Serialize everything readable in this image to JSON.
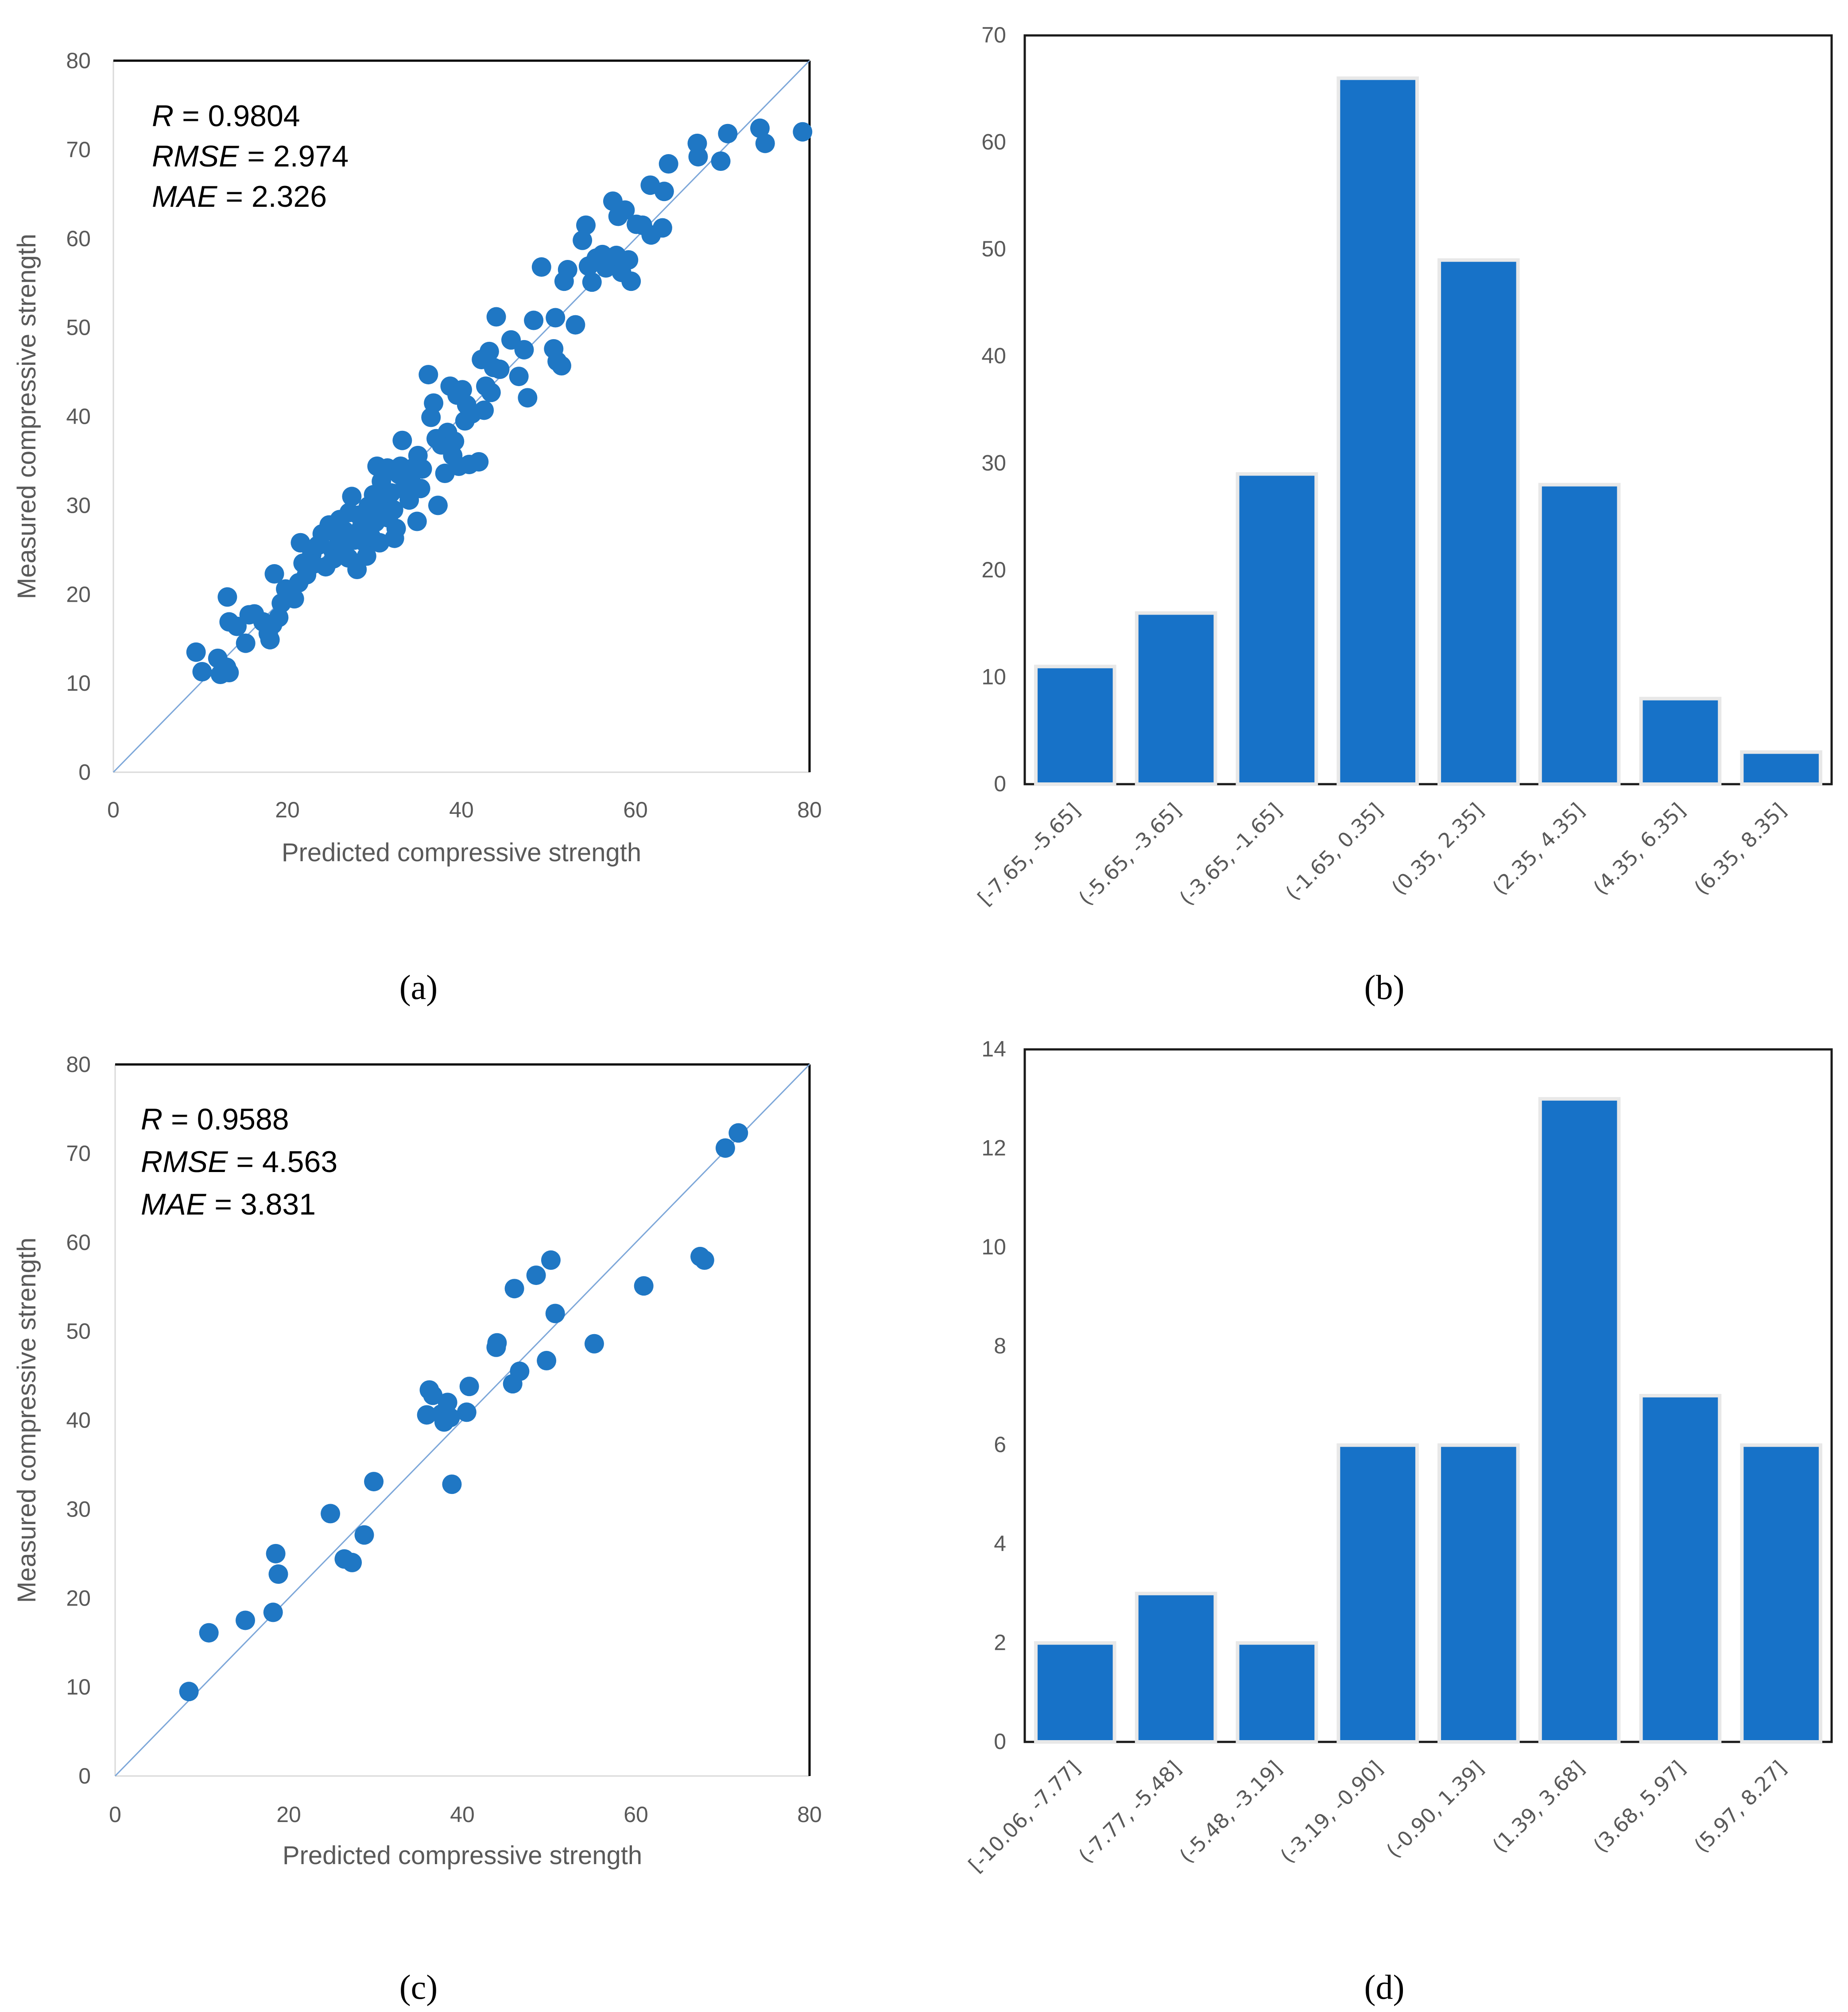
{
  "colors": {
    "marker": "#1f77c4",
    "bar": "#1772c8",
    "bar_border": "#e8e8e8",
    "line": "#7da7d9",
    "text": "#595959"
  },
  "chart_data": [
    {
      "id": "a",
      "panel_label": "(a)",
      "type": "scatter",
      "xlabel": "Predicted compressive strength",
      "ylabel": "Measured compressive strength",
      "xlim": [
        0,
        80
      ],
      "ylim": [
        0,
        80
      ],
      "xticks": [
        "0",
        "20",
        "40",
        "60",
        "80"
      ],
      "yticks": [
        "0",
        "10",
        "20",
        "30",
        "40",
        "50",
        "60",
        "70",
        "80"
      ],
      "reference_line": "y = x",
      "stats": [
        {
          "name": "R",
          "value": " = 0.9804"
        },
        {
          "name": "RMSE",
          "value": " = 2.974"
        },
        {
          "name": "MAE",
          "value": " = 2.326"
        }
      ],
      "points": [
        [
          9.5,
          13.5
        ],
        [
          10.2,
          11.3
        ],
        [
          12,
          12.8
        ],
        [
          12.3,
          11
        ],
        [
          12.7,
          11.4
        ],
        [
          13,
          11.8
        ],
        [
          13.3,
          11.2
        ],
        [
          13.1,
          19.7
        ],
        [
          13.3,
          16.9
        ],
        [
          14.2,
          16.4
        ],
        [
          15.2,
          14.5
        ],
        [
          15.6,
          17.7
        ],
        [
          16.2,
          17.8
        ],
        [
          17.2,
          16.9
        ],
        [
          17.8,
          15.6
        ],
        [
          18,
          14.9
        ],
        [
          18.3,
          16.6
        ],
        [
          18.5,
          22.3
        ],
        [
          19,
          17.4
        ],
        [
          19.3,
          19
        ],
        [
          19.8,
          20.6
        ],
        [
          20.2,
          19.7
        ],
        [
          20.8,
          19.5
        ],
        [
          21.3,
          21.3
        ],
        [
          21.5,
          25.8
        ],
        [
          21.8,
          23.5
        ],
        [
          22.2,
          22.2
        ],
        [
          22.8,
          24.5
        ],
        [
          23,
          23.4
        ],
        [
          23.5,
          25.5
        ],
        [
          24,
          26.8
        ],
        [
          24.4,
          23.1
        ],
        [
          24.8,
          27.8
        ],
        [
          25.2,
          25
        ],
        [
          25.3,
          24
        ],
        [
          25.8,
          26.6
        ],
        [
          26,
          28.4
        ],
        [
          26.3,
          25.6
        ],
        [
          26.6,
          27.1
        ],
        [
          27,
          24.1
        ],
        [
          27.1,
          29.2
        ],
        [
          27.4,
          31
        ],
        [
          27.7,
          26.1
        ],
        [
          28,
          22.8
        ],
        [
          28.2,
          28.9
        ],
        [
          28.5,
          27.5
        ],
        [
          28.8,
          25.9
        ],
        [
          29.1,
          24.3
        ],
        [
          29.3,
          29.9
        ],
        [
          29.6,
          26.5
        ],
        [
          29.9,
          31.2
        ],
        [
          30.1,
          28.1
        ],
        [
          30.3,
          34.4
        ],
        [
          30.5,
          29.4
        ],
        [
          30.6,
          25.8
        ],
        [
          30.8,
          32.7
        ],
        [
          31.1,
          30.8
        ],
        [
          31.2,
          33.9
        ],
        [
          31.5,
          34.2
        ],
        [
          31.6,
          28.6
        ],
        [
          31.9,
          31.4
        ],
        [
          32.2,
          29.5
        ],
        [
          32.3,
          26.3
        ],
        [
          32.5,
          27.4
        ],
        [
          32.8,
          33.5
        ],
        [
          33,
          34.4
        ],
        [
          33.2,
          37.3
        ],
        [
          33.4,
          31.8
        ],
        [
          33.7,
          33.2
        ],
        [
          34,
          30.6
        ],
        [
          34.2,
          32.7
        ],
        [
          34.6,
          34.3
        ],
        [
          34.9,
          28.2
        ],
        [
          35,
          35.6
        ],
        [
          35.3,
          31.9
        ],
        [
          35.5,
          34.1
        ],
        [
          36.2,
          44.7
        ],
        [
          36.5,
          39.9
        ],
        [
          36.8,
          41.5
        ],
        [
          37.1,
          37.5
        ],
        [
          37.3,
          30
        ],
        [
          37.7,
          36.8
        ],
        [
          38.1,
          33.6
        ],
        [
          38.4,
          38.2
        ],
        [
          38.7,
          43.4
        ],
        [
          39,
          35.6
        ],
        [
          39.2,
          37.2
        ],
        [
          39.5,
          42.4
        ],
        [
          39.7,
          34.4
        ],
        [
          40.1,
          43
        ],
        [
          40.4,
          39.5
        ],
        [
          40.6,
          41.3
        ],
        [
          40.9,
          34.6
        ],
        [
          41.2,
          40.3
        ],
        [
          42,
          34.9
        ],
        [
          42.3,
          46.4
        ],
        [
          42.6,
          40.7
        ],
        [
          42.8,
          43.4
        ],
        [
          43.2,
          47.3
        ],
        [
          43.4,
          42.7
        ],
        [
          43.7,
          45.5
        ],
        [
          44,
          51.2
        ],
        [
          44.4,
          45.3
        ],
        [
          45.7,
          48.6
        ],
        [
          46.6,
          44.5
        ],
        [
          47.2,
          47.5
        ],
        [
          47.6,
          42.1
        ],
        [
          48.3,
          50.8
        ],
        [
          49.2,
          56.8
        ],
        [
          50.8,
          51.1
        ],
        [
          50.6,
          47.6
        ],
        [
          51,
          46.2
        ],
        [
          51.5,
          45.7
        ],
        [
          51.8,
          55.2
        ],
        [
          52.2,
          56.5
        ],
        [
          53.1,
          50.3
        ],
        [
          53.9,
          59.8
        ],
        [
          54.3,
          61.5
        ],
        [
          54.6,
          56.9
        ],
        [
          55,
          55.1
        ],
        [
          55.5,
          57.8
        ],
        [
          56.2,
          58.2
        ],
        [
          56.6,
          56.7
        ],
        [
          57.4,
          64.2
        ],
        [
          57.8,
          58.1
        ],
        [
          58,
          62.5
        ],
        [
          58.4,
          56.2
        ],
        [
          58.8,
          63.2
        ],
        [
          59.2,
          57.6
        ],
        [
          59.5,
          55.2
        ],
        [
          60.1,
          61.6
        ],
        [
          60.8,
          61.5
        ],
        [
          61.7,
          66
        ],
        [
          61.8,
          60.4
        ],
        [
          63.1,
          61.2
        ],
        [
          63.3,
          65.3
        ],
        [
          63.8,
          68.4
        ],
        [
          67.1,
          70.7
        ],
        [
          67.2,
          69.2
        ],
        [
          69.8,
          68.7
        ],
        [
          70.6,
          71.8
        ],
        [
          74.3,
          72.4
        ],
        [
          74.9,
          70.7
        ],
        [
          79.2,
          72
        ]
      ]
    },
    {
      "id": "b",
      "panel_label": "(b)",
      "type": "bar",
      "ylim": [
        0,
        70
      ],
      "yticks": [
        "0",
        "10",
        "20",
        "30",
        "40",
        "50",
        "60",
        "70"
      ],
      "categories": [
        "[-7.65, -5.65]",
        "(-5.65, -3.65]",
        "(-3.65, -1.65]",
        "(-1.65, 0.35]",
        "(0.35, 2.35]",
        "(2.35, 4.35]",
        "(4.35, 6.35]",
        "(6.35, 8.35]"
      ],
      "values": [
        11,
        16,
        29,
        66,
        49,
        28,
        8,
        3
      ]
    },
    {
      "id": "c",
      "panel_label": "(c)",
      "type": "scatter",
      "xlabel": "Predicted compressive strength",
      "ylabel": "Measured compressive strength",
      "xlim": [
        0,
        80
      ],
      "ylim": [
        0,
        80
      ],
      "xticks": [
        "0",
        "20",
        "40",
        "60",
        "80"
      ],
      "yticks": [
        "0",
        "10",
        "20",
        "30",
        "40",
        "50",
        "60",
        "70",
        "80"
      ],
      "reference_line": "y = x",
      "stats": [
        {
          "name": "R",
          "value": " = 0.9588"
        },
        {
          "name": "RMSE",
          "value": " = 4.563"
        },
        {
          "name": "MAE",
          "value": " = 3.831"
        }
      ],
      "points": [
        [
          8.5,
          9.5
        ],
        [
          10.8,
          16.1
        ],
        [
          15,
          17.5
        ],
        [
          18.2,
          18.4
        ],
        [
          18.5,
          25
        ],
        [
          18.8,
          22.7
        ],
        [
          24.8,
          29.5
        ],
        [
          26.4,
          24.4
        ],
        [
          27.3,
          24
        ],
        [
          28.7,
          27.1
        ],
        [
          29.8,
          33.1
        ],
        [
          35.9,
          40.6
        ],
        [
          36.2,
          43.4
        ],
        [
          36.6,
          42.8
        ],
        [
          37.6,
          40.7
        ],
        [
          37.9,
          39.8
        ],
        [
          38.3,
          42
        ],
        [
          38.6,
          40.3
        ],
        [
          38.8,
          32.8
        ],
        [
          40.5,
          40.9
        ],
        [
          40.8,
          43.8
        ],
        [
          43.9,
          48.2
        ],
        [
          44,
          48.7
        ],
        [
          45.8,
          44.1
        ],
        [
          46,
          54.8
        ],
        [
          46.6,
          45.5
        ],
        [
          48.5,
          56.3
        ],
        [
          49.7,
          46.7
        ],
        [
          50.2,
          58
        ],
        [
          50.7,
          52
        ],
        [
          55.2,
          48.6
        ],
        [
          60.9,
          55.1
        ],
        [
          67.4,
          58.4
        ],
        [
          67.9,
          58
        ],
        [
          70.3,
          70.6
        ],
        [
          71.8,
          72.3
        ]
      ]
    },
    {
      "id": "d",
      "panel_label": "(d)",
      "type": "bar",
      "ylim": [
        0,
        14
      ],
      "yticks": [
        "0",
        "2",
        "4",
        "6",
        "8",
        "10",
        "12",
        "14"
      ],
      "categories": [
        "[-10.06, -7.77]",
        "(-7.77, -5.48]",
        "(-5.48, -3.19]",
        "(-3.19, -0.90]",
        "(-0.90, 1.39]",
        "(1.39, 3.68]",
        "(3.68, 5.97]",
        "(5.97, 8.27]"
      ],
      "values": [
        2,
        3,
        2,
        6,
        6,
        13,
        7,
        6
      ]
    }
  ]
}
